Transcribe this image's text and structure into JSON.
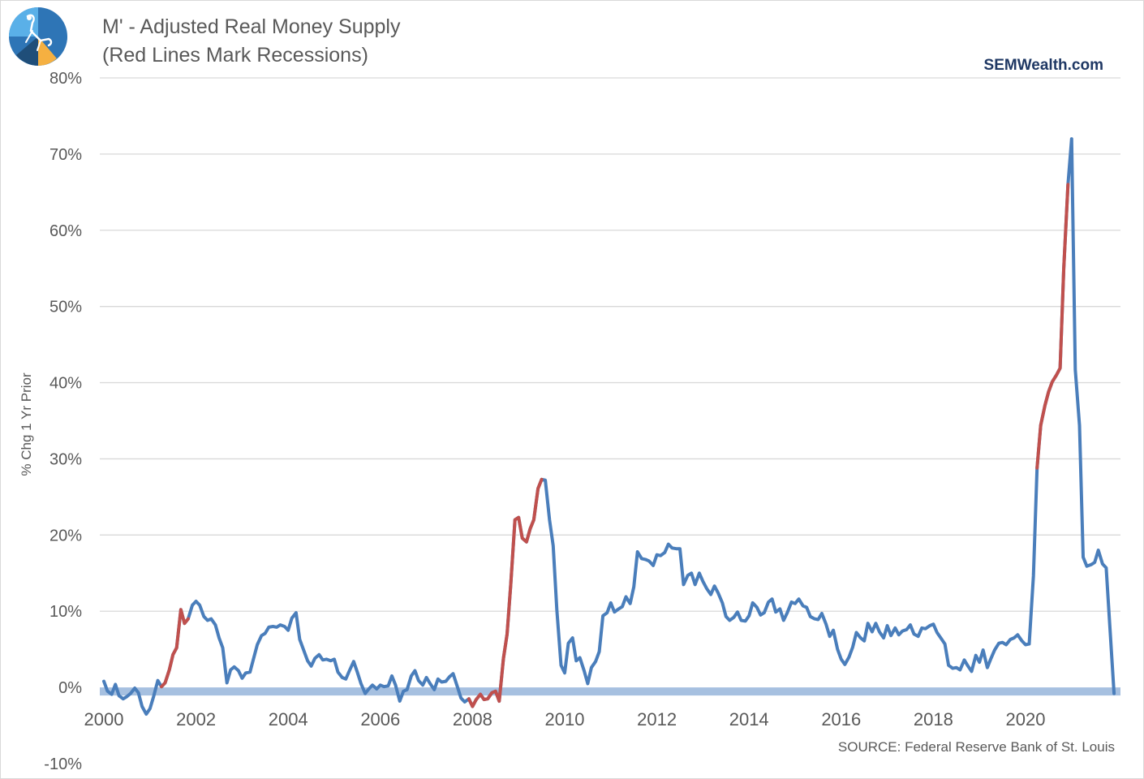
{
  "header": {
    "title": "M' - Adjusted Real Money Supply",
    "subtitle": "(Red Lines Mark Recessions)",
    "brand": "SEMWealth.com",
    "source": "SOURCE:  Federal Reserve Bank of St. Louis"
  },
  "colors": {
    "line": "#4a7ebb",
    "recession": "#c0504d",
    "zero_band": "#a6c0e0",
    "grid": "#d9d9d9",
    "text": "#595959"
  },
  "chart_data": {
    "type": "line",
    "ylabel": "% Chg 1 Yr Prior",
    "ylim": [
      -10,
      80
    ],
    "y_ticks": [
      {
        "value": 80,
        "label": "80%"
      },
      {
        "value": 70,
        "label": "70%"
      },
      {
        "value": 60,
        "label": "60%"
      },
      {
        "value": 50,
        "label": "50%"
      },
      {
        "value": 40,
        "label": "40%"
      },
      {
        "value": 30,
        "label": "30%"
      },
      {
        "value": 20,
        "label": "20%"
      },
      {
        "value": 10,
        "label": "10%"
      },
      {
        "value": 0,
        "label": "0%"
      },
      {
        "value": -10,
        "label": "-10%"
      }
    ],
    "xlim": [
      2000,
      2022.2
    ],
    "x_ticks": [
      {
        "value": 2000,
        "label": "2000"
      },
      {
        "value": 2002,
        "label": "2002"
      },
      {
        "value": 2004,
        "label": "2004"
      },
      {
        "value": 2006,
        "label": "2006"
      },
      {
        "value": 2008,
        "label": "2008"
      },
      {
        "value": 2010,
        "label": "2010"
      },
      {
        "value": 2012,
        "label": "2012"
      },
      {
        "value": 2014,
        "label": "2014"
      },
      {
        "value": 2016,
        "label": "2016"
      },
      {
        "value": 2018,
        "label": "2018"
      },
      {
        "value": 2020,
        "label": "2020"
      }
    ],
    "grid": true,
    "legend": "none",
    "zero_line": "band",
    "recessions": [
      [
        2001.2,
        2001.9
      ],
      [
        2007.9,
        2009.5
      ],
      [
        2020.2,
        2020.95
      ]
    ],
    "points": [
      [
        2000.0,
        0.8
      ],
      [
        2000.08,
        -0.5
      ],
      [
        2000.17,
        -0.9
      ],
      [
        2000.25,
        0.4
      ],
      [
        2000.33,
        -1.1
      ],
      [
        2000.42,
        -1.5
      ],
      [
        2000.5,
        -1.2
      ],
      [
        2000.58,
        -0.8
      ],
      [
        2000.67,
        -0.1
      ],
      [
        2000.75,
        -0.7
      ],
      [
        2000.83,
        -2.5
      ],
      [
        2000.92,
        -3.5
      ],
      [
        2001.0,
        -2.8
      ],
      [
        2001.08,
        -1.2
      ],
      [
        2001.17,
        0.9
      ],
      [
        2001.25,
        0.1
      ],
      [
        2001.33,
        0.6
      ],
      [
        2001.42,
        2.3
      ],
      [
        2001.5,
        4.3
      ],
      [
        2001.58,
        5.2
      ],
      [
        2001.67,
        10.2
      ],
      [
        2001.75,
        8.4
      ],
      [
        2001.83,
        9.0
      ],
      [
        2001.92,
        10.8
      ],
      [
        2002.0,
        11.3
      ],
      [
        2002.08,
        10.8
      ],
      [
        2002.17,
        9.3
      ],
      [
        2002.25,
        8.8
      ],
      [
        2002.33,
        9.0
      ],
      [
        2002.42,
        8.2
      ],
      [
        2002.5,
        6.5
      ],
      [
        2002.58,
        5.2
      ],
      [
        2002.67,
        0.6
      ],
      [
        2002.75,
        2.3
      ],
      [
        2002.83,
        2.7
      ],
      [
        2002.92,
        2.2
      ],
      [
        2003.0,
        1.2
      ],
      [
        2003.08,
        1.9
      ],
      [
        2003.17,
        2.0
      ],
      [
        2003.25,
        3.8
      ],
      [
        2003.33,
        5.6
      ],
      [
        2003.42,
        6.8
      ],
      [
        2003.5,
        7.1
      ],
      [
        2003.58,
        7.9
      ],
      [
        2003.67,
        8.0
      ],
      [
        2003.75,
        7.9
      ],
      [
        2003.83,
        8.2
      ],
      [
        2003.92,
        8.0
      ],
      [
        2004.0,
        7.5
      ],
      [
        2004.08,
        9.1
      ],
      [
        2004.17,
        9.8
      ],
      [
        2004.25,
        6.3
      ],
      [
        2004.33,
        5.0
      ],
      [
        2004.42,
        3.5
      ],
      [
        2004.5,
        2.8
      ],
      [
        2004.58,
        3.8
      ],
      [
        2004.67,
        4.3
      ],
      [
        2004.75,
        3.6
      ],
      [
        2004.83,
        3.7
      ],
      [
        2004.92,
        3.5
      ],
      [
        2005.0,
        3.7
      ],
      [
        2005.08,
        2.0
      ],
      [
        2005.17,
        1.3
      ],
      [
        2005.25,
        1.1
      ],
      [
        2005.33,
        2.2
      ],
      [
        2005.42,
        3.4
      ],
      [
        2005.5,
        2.0
      ],
      [
        2005.58,
        0.5
      ],
      [
        2005.67,
        -0.8
      ],
      [
        2005.75,
        -0.2
      ],
      [
        2005.83,
        0.3
      ],
      [
        2005.92,
        -0.2
      ],
      [
        2006.0,
        0.3
      ],
      [
        2006.08,
        0.1
      ],
      [
        2006.17,
        0.2
      ],
      [
        2006.25,
        1.5
      ],
      [
        2006.33,
        0.3
      ],
      [
        2006.42,
        -1.8
      ],
      [
        2006.5,
        -0.5
      ],
      [
        2006.58,
        -0.3
      ],
      [
        2006.67,
        1.5
      ],
      [
        2006.75,
        2.2
      ],
      [
        2006.83,
        0.9
      ],
      [
        2006.92,
        0.3
      ],
      [
        2007.0,
        1.3
      ],
      [
        2007.08,
        0.5
      ],
      [
        2007.17,
        -0.3
      ],
      [
        2007.25,
        1.1
      ],
      [
        2007.33,
        0.7
      ],
      [
        2007.42,
        0.8
      ],
      [
        2007.5,
        1.4
      ],
      [
        2007.58,
        1.8
      ],
      [
        2007.67,
        0.1
      ],
      [
        2007.75,
        -1.4
      ],
      [
        2007.83,
        -1.9
      ],
      [
        2007.92,
        -1.5
      ],
      [
        2008.0,
        -2.5
      ],
      [
        2008.08,
        -1.6
      ],
      [
        2008.17,
        -0.9
      ],
      [
        2008.25,
        -1.6
      ],
      [
        2008.33,
        -1.5
      ],
      [
        2008.42,
        -0.7
      ],
      [
        2008.5,
        -0.5
      ],
      [
        2008.58,
        -1.8
      ],
      [
        2008.67,
        3.8
      ],
      [
        2008.75,
        7.0
      ],
      [
        2008.83,
        13.5
      ],
      [
        2008.92,
        22.0
      ],
      [
        2009.0,
        22.3
      ],
      [
        2009.08,
        19.6
      ],
      [
        2009.17,
        19.1
      ],
      [
        2009.25,
        20.8
      ],
      [
        2009.33,
        22.0
      ],
      [
        2009.42,
        26.1
      ],
      [
        2009.5,
        27.3
      ],
      [
        2009.58,
        27.2
      ],
      [
        2009.67,
        22.0
      ],
      [
        2009.75,
        18.6
      ],
      [
        2009.83,
        10.2
      ],
      [
        2009.92,
        2.9
      ],
      [
        2010.0,
        1.9
      ],
      [
        2010.08,
        5.8
      ],
      [
        2010.17,
        6.5
      ],
      [
        2010.25,
        3.5
      ],
      [
        2010.33,
        3.9
      ],
      [
        2010.42,
        2.2
      ],
      [
        2010.5,
        0.5
      ],
      [
        2010.58,
        2.6
      ],
      [
        2010.67,
        3.4
      ],
      [
        2010.75,
        4.7
      ],
      [
        2010.83,
        9.4
      ],
      [
        2010.92,
        9.8
      ],
      [
        2011.0,
        11.1
      ],
      [
        2011.08,
        9.9
      ],
      [
        2011.17,
        10.3
      ],
      [
        2011.25,
        10.6
      ],
      [
        2011.33,
        11.9
      ],
      [
        2011.42,
        11.0
      ],
      [
        2011.5,
        13.2
      ],
      [
        2011.58,
        17.8
      ],
      [
        2011.67,
        16.9
      ],
      [
        2011.75,
        16.8
      ],
      [
        2011.83,
        16.6
      ],
      [
        2011.92,
        16.0
      ],
      [
        2012.0,
        17.4
      ],
      [
        2012.08,
        17.3
      ],
      [
        2012.17,
        17.7
      ],
      [
        2012.25,
        18.8
      ],
      [
        2012.33,
        18.3
      ],
      [
        2012.42,
        18.2
      ],
      [
        2012.5,
        18.2
      ],
      [
        2012.58,
        13.5
      ],
      [
        2012.67,
        14.7
      ],
      [
        2012.75,
        15.0
      ],
      [
        2012.83,
        13.5
      ],
      [
        2012.92,
        15.0
      ],
      [
        2013.0,
        13.9
      ],
      [
        2013.08,
        13.0
      ],
      [
        2013.17,
        12.2
      ],
      [
        2013.25,
        13.3
      ],
      [
        2013.33,
        12.4
      ],
      [
        2013.42,
        11.1
      ],
      [
        2013.5,
        9.3
      ],
      [
        2013.58,
        8.8
      ],
      [
        2013.67,
        9.2
      ],
      [
        2013.75,
        9.9
      ],
      [
        2013.83,
        8.8
      ],
      [
        2013.92,
        8.7
      ],
      [
        2014.0,
        9.4
      ],
      [
        2014.08,
        11.1
      ],
      [
        2014.17,
        10.5
      ],
      [
        2014.25,
        9.5
      ],
      [
        2014.33,
        9.8
      ],
      [
        2014.42,
        11.2
      ],
      [
        2014.5,
        11.6
      ],
      [
        2014.58,
        9.9
      ],
      [
        2014.67,
        10.3
      ],
      [
        2014.75,
        8.8
      ],
      [
        2014.83,
        9.8
      ],
      [
        2014.92,
        11.2
      ],
      [
        2015.0,
        11.0
      ],
      [
        2015.08,
        11.6
      ],
      [
        2015.17,
        10.7
      ],
      [
        2015.25,
        10.5
      ],
      [
        2015.33,
        9.3
      ],
      [
        2015.42,
        9.0
      ],
      [
        2015.5,
        8.9
      ],
      [
        2015.58,
        9.7
      ],
      [
        2015.67,
        8.3
      ],
      [
        2015.75,
        6.7
      ],
      [
        2015.83,
        7.5
      ],
      [
        2015.92,
        5.0
      ],
      [
        2016.0,
        3.7
      ],
      [
        2016.08,
        3.0
      ],
      [
        2016.17,
        4.0
      ],
      [
        2016.25,
        5.3
      ],
      [
        2016.33,
        7.2
      ],
      [
        2016.42,
        6.5
      ],
      [
        2016.5,
        6.1
      ],
      [
        2016.58,
        8.4
      ],
      [
        2016.67,
        7.3
      ],
      [
        2016.75,
        8.4
      ],
      [
        2016.83,
        7.3
      ],
      [
        2016.92,
        6.5
      ],
      [
        2017.0,
        8.1
      ],
      [
        2017.08,
        6.8
      ],
      [
        2017.17,
        7.8
      ],
      [
        2017.25,
        6.9
      ],
      [
        2017.33,
        7.4
      ],
      [
        2017.42,
        7.6
      ],
      [
        2017.5,
        8.2
      ],
      [
        2017.58,
        7.0
      ],
      [
        2017.67,
        6.7
      ],
      [
        2017.75,
        7.8
      ],
      [
        2017.83,
        7.7
      ],
      [
        2017.92,
        8.1
      ],
      [
        2018.0,
        8.3
      ],
      [
        2018.08,
        7.2
      ],
      [
        2018.17,
        6.4
      ],
      [
        2018.25,
        5.7
      ],
      [
        2018.33,
        2.9
      ],
      [
        2018.42,
        2.5
      ],
      [
        2018.5,
        2.6
      ],
      [
        2018.58,
        2.3
      ],
      [
        2018.67,
        3.6
      ],
      [
        2018.75,
        2.8
      ],
      [
        2018.83,
        2.1
      ],
      [
        2018.92,
        4.2
      ],
      [
        2019.0,
        3.3
      ],
      [
        2019.08,
        4.9
      ],
      [
        2019.17,
        2.6
      ],
      [
        2019.25,
        3.8
      ],
      [
        2019.33,
        4.9
      ],
      [
        2019.42,
        5.8
      ],
      [
        2019.5,
        5.9
      ],
      [
        2019.58,
        5.6
      ],
      [
        2019.67,
        6.3
      ],
      [
        2019.75,
        6.5
      ],
      [
        2019.83,
        6.9
      ],
      [
        2019.92,
        6.1
      ],
      [
        2020.0,
        5.6
      ],
      [
        2020.08,
        5.7
      ],
      [
        2020.17,
        14.6
      ],
      [
        2020.25,
        28.8
      ],
      [
        2020.33,
        34.4
      ],
      [
        2020.42,
        37.0
      ],
      [
        2020.5,
        38.8
      ],
      [
        2020.58,
        40.1
      ],
      [
        2020.67,
        41.0
      ],
      [
        2020.75,
        41.9
      ],
      [
        2020.83,
        55.0
      ],
      [
        2020.92,
        66.0
      ],
      [
        2021.0,
        72.0
      ],
      [
        2021.08,
        41.7
      ],
      [
        2021.17,
        34.4
      ],
      [
        2021.25,
        17.1
      ],
      [
        2021.33,
        15.9
      ],
      [
        2021.42,
        16.1
      ],
      [
        2021.5,
        16.4
      ],
      [
        2021.58,
        18.0
      ],
      [
        2021.67,
        16.2
      ],
      [
        2021.75,
        15.7
      ],
      [
        2021.83,
        8.0
      ],
      [
        2021.92,
        -0.8
      ]
    ]
  }
}
